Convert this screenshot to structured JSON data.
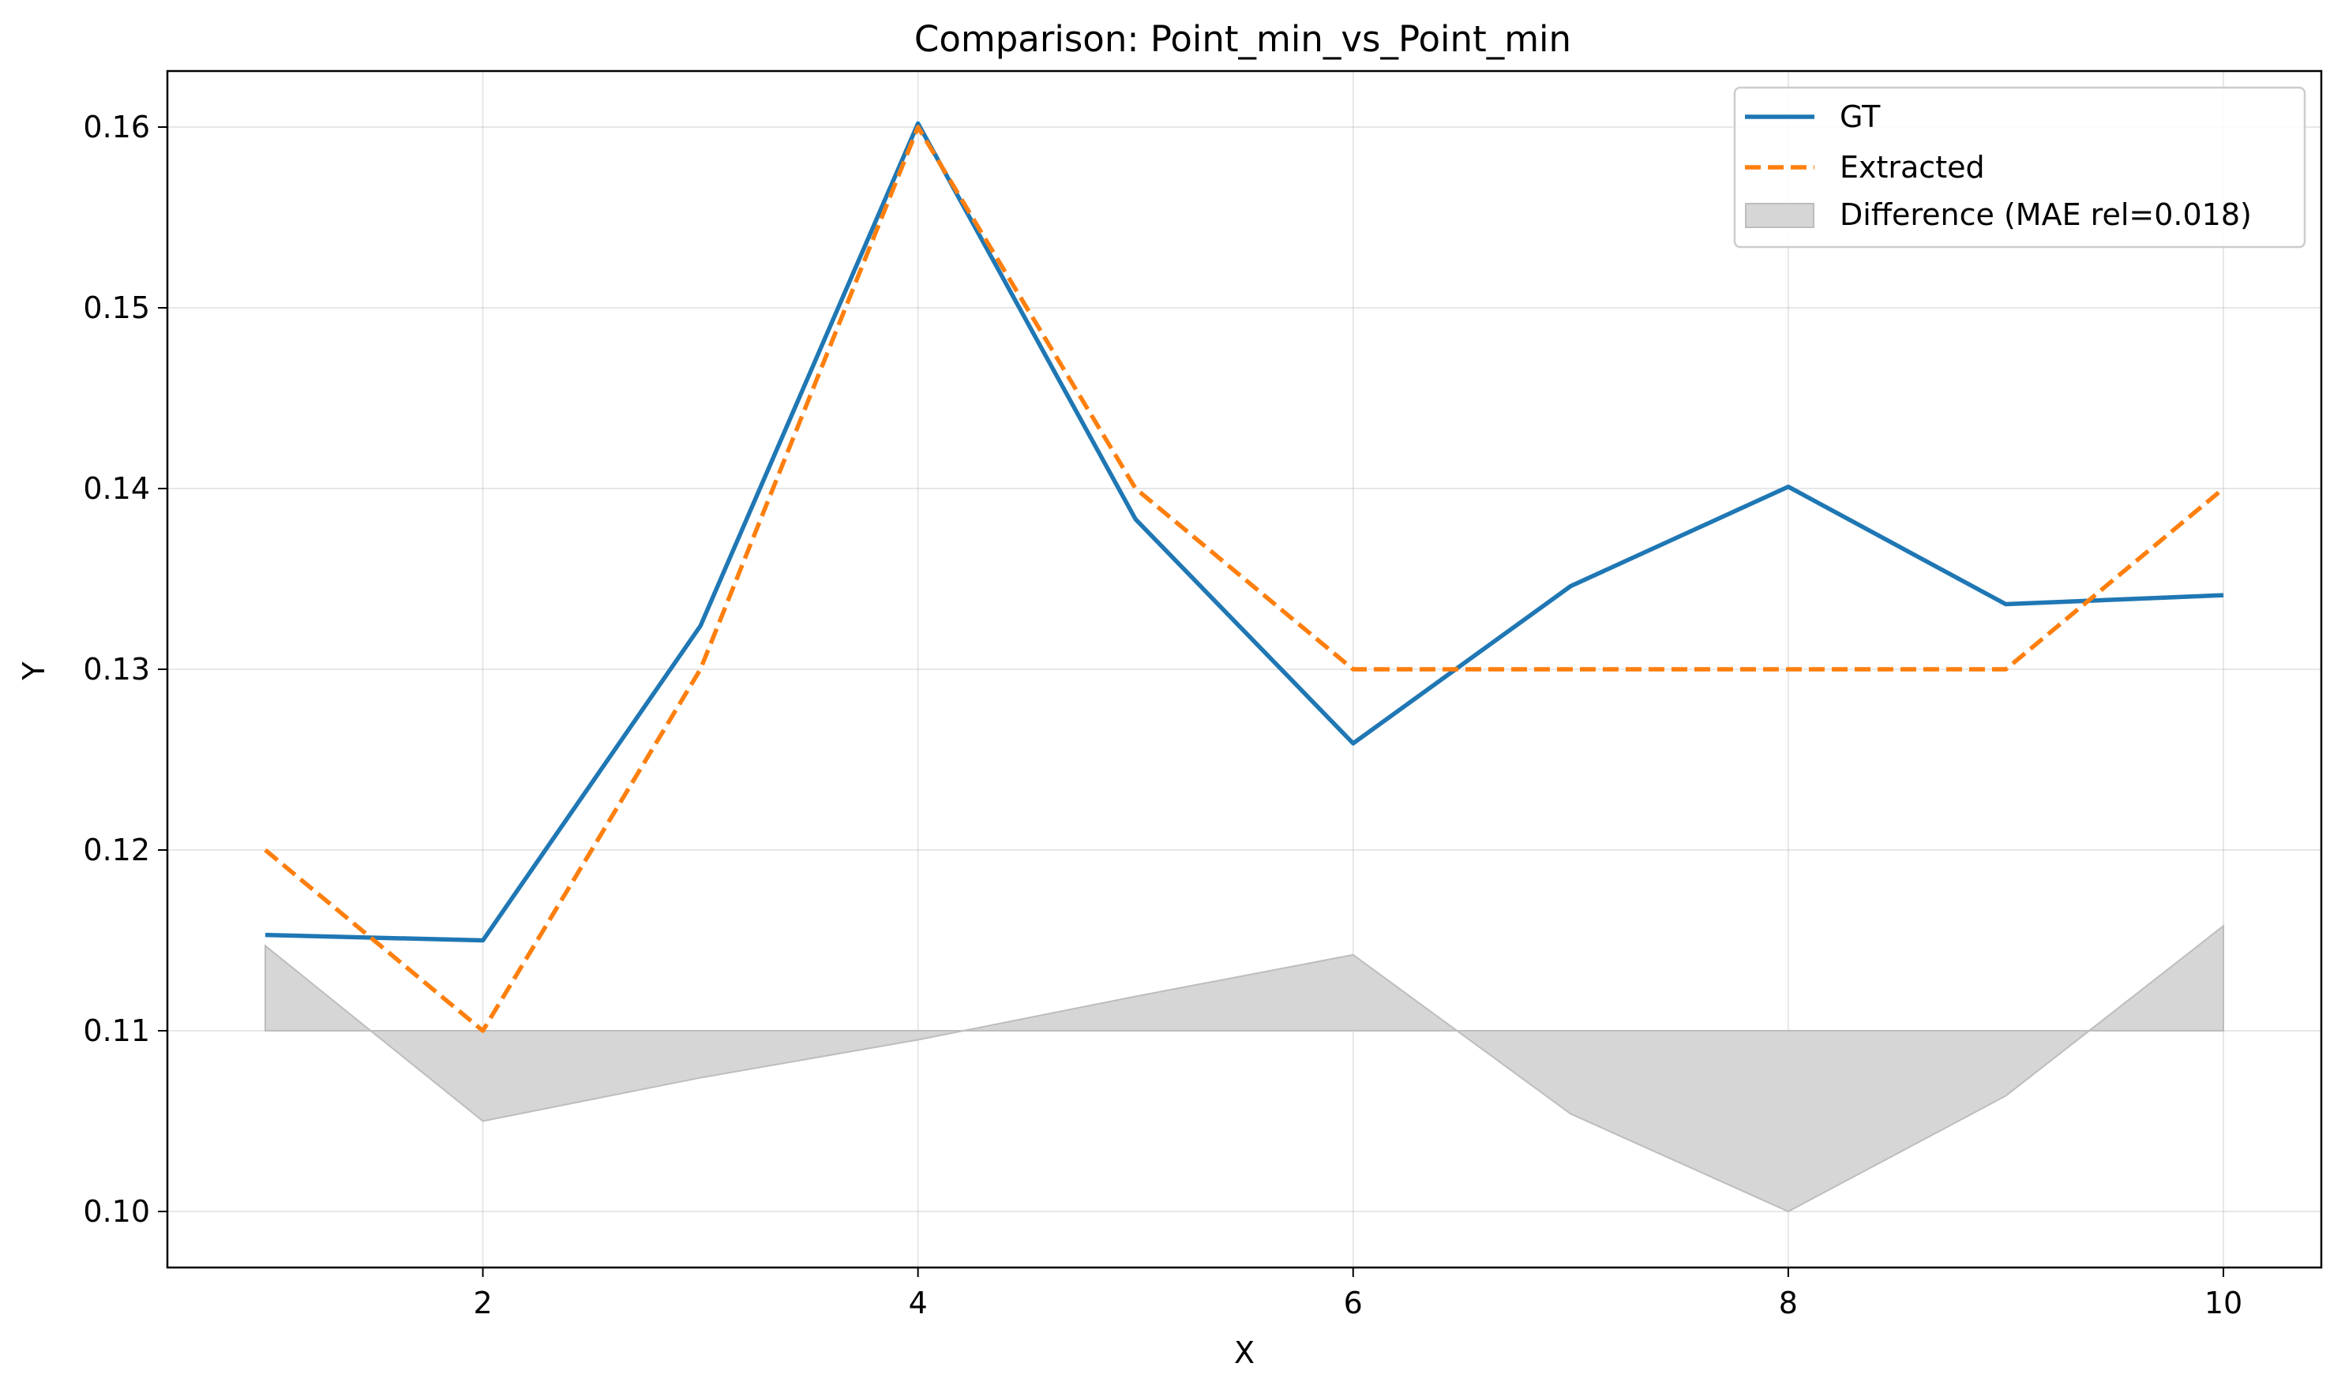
{
  "chart_data": {
    "type": "line",
    "title": "Comparison: Point_min_vs_Point_min",
    "xlabel": "X",
    "ylabel": "Y",
    "xlim": [
      0.55,
      10.45
    ],
    "ylim": [
      0.0969,
      0.1631
    ],
    "x_ticks": [
      2,
      4,
      6,
      8,
      10
    ],
    "y_ticks": [
      0.1,
      0.11,
      0.12,
      0.13,
      0.14,
      0.15,
      0.16
    ],
    "x_tick_labels": [
      "2",
      "4",
      "6",
      "8",
      "10"
    ],
    "y_tick_labels": [
      "0.10",
      "0.11",
      "0.12",
      "0.13",
      "0.14",
      "0.15",
      "0.16"
    ],
    "grid": true,
    "legend_position": "top-right",
    "x": [
      1,
      2,
      3,
      4,
      5,
      6,
      7,
      8,
      9,
      10
    ],
    "series": [
      {
        "name": "GT",
        "style": "solid",
        "color": "#1f77b4",
        "values": [
          0.1153,
          0.115,
          0.1324,
          0.1602,
          0.1383,
          0.1259,
          0.1346,
          0.1401,
          0.1336,
          0.1341
        ]
      },
      {
        "name": "Extracted",
        "style": "dashed",
        "color": "#ff7f0e",
        "values": [
          0.12,
          0.11,
          0.13,
          0.16,
          0.14,
          0.13,
          0.13,
          0.13,
          0.13,
          0.14
        ]
      }
    ],
    "difference": {
      "name": "Difference (MAE rel=0.018)",
      "baseline": 0.11,
      "color": "#d6d6d6",
      "edge_color": "#bdbdbd",
      "values": [
        0.1147,
        0.105,
        0.1074,
        0.1095,
        0.1119,
        0.1142,
        0.1054,
        0.1,
        0.1064,
        0.1158
      ]
    }
  }
}
